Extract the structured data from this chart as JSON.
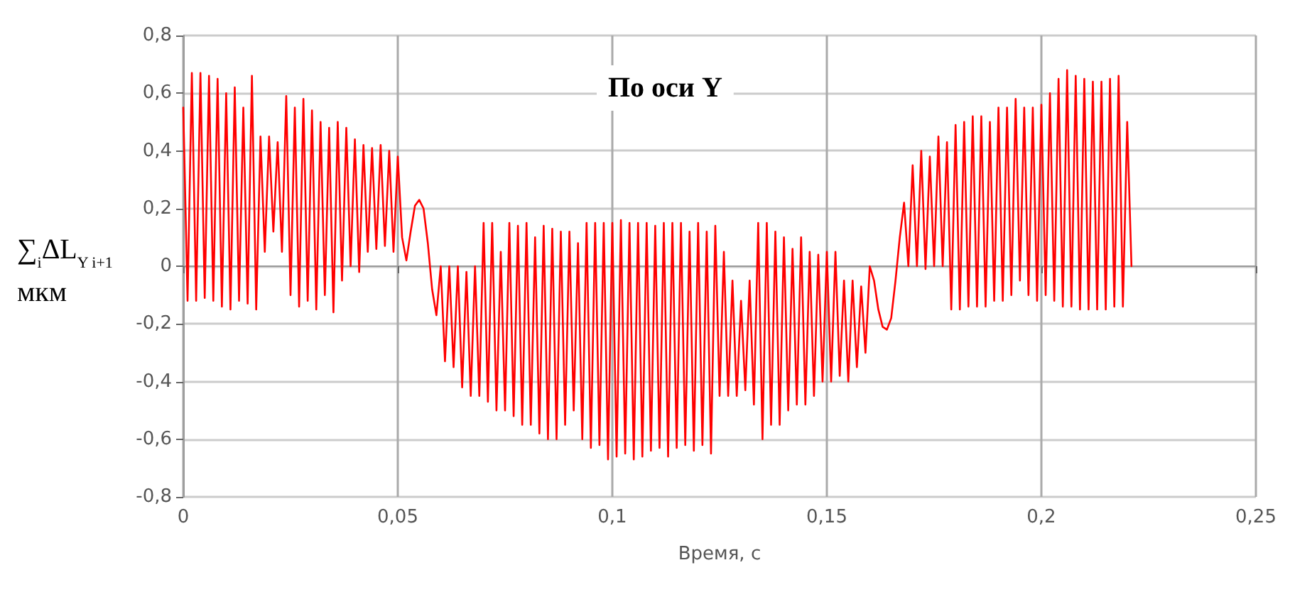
{
  "chart_data": {
    "type": "line",
    "title": "По оси Y",
    "xlabel": "Время, с",
    "ylabel": "∑$_{i}$ΔL$_{Y i+1}$\nмкм",
    "series": [
      {
        "color": "#ff0000",
        "x": [
          0,
          0.001,
          0.002,
          0.003,
          0.004,
          0.005,
          0.006,
          0.007,
          0.008,
          0.009,
          0.01,
          0.011,
          0.012,
          0.013,
          0.014,
          0.015,
          0.016,
          0.017,
          0.018,
          0.019,
          0.02,
          0.021,
          0.022,
          0.023,
          0.024,
          0.025,
          0.026,
          0.027,
          0.028,
          0.029,
          0.03,
          0.031,
          0.032,
          0.033,
          0.034,
          0.035,
          0.036,
          0.037,
          0.038,
          0.039,
          0.04,
          0.041,
          0.042,
          0.043,
          0.044,
          0.045,
          0.046,
          0.047,
          0.048,
          0.049,
          0.05,
          0.051,
          0.052,
          0.053,
          0.054,
          0.055,
          0.056,
          0.057,
          0.058,
          0.059,
          0.06,
          0.061,
          0.062,
          0.063,
          0.064,
          0.065,
          0.066,
          0.067,
          0.068,
          0.069,
          0.07,
          0.071,
          0.072,
          0.073,
          0.074,
          0.075,
          0.076,
          0.077,
          0.078,
          0.079,
          0.08,
          0.081,
          0.082,
          0.083,
          0.084,
          0.085,
          0.086,
          0.087,
          0.088,
          0.089,
          0.09,
          0.091,
          0.092,
          0.093,
          0.094,
          0.095,
          0.096,
          0.097,
          0.098,
          0.099,
          0.1,
          0.101,
          0.102,
          0.103,
          0.104,
          0.105,
          0.106,
          0.107,
          0.108,
          0.109,
          0.11,
          0.111,
          0.112,
          0.113,
          0.114,
          0.115,
          0.116,
          0.117,
          0.118,
          0.119,
          0.12,
          0.121,
          0.122,
          0.123,
          0.124,
          0.125,
          0.126,
          0.127,
          0.128,
          0.129,
          0.13,
          0.131,
          0.132,
          0.133,
          0.134,
          0.135,
          0.136,
          0.137,
          0.138,
          0.139,
          0.14,
          0.141,
          0.142,
          0.143,
          0.144,
          0.145,
          0.146,
          0.147,
          0.148,
          0.149,
          0.15,
          0.151,
          0.152,
          0.153,
          0.154,
          0.155,
          0.156,
          0.157,
          0.158,
          0.159,
          0.16,
          0.161,
          0.162,
          0.163,
          0.164,
          0.165,
          0.166,
          0.167,
          0.168,
          0.169,
          0.17,
          0.171,
          0.172,
          0.173,
          0.174,
          0.175,
          0.176,
          0.177,
          0.178,
          0.179,
          0.18,
          0.181,
          0.182,
          0.183,
          0.184,
          0.185,
          0.186,
          0.187,
          0.188,
          0.189,
          0.19,
          0.191,
          0.192,
          0.193,
          0.194,
          0.195,
          0.196,
          0.197,
          0.198,
          0.199,
          0.2,
          0.201,
          0.202,
          0.203,
          0.204,
          0.205,
          0.206,
          0.207,
          0.208,
          0.209,
          0.21,
          0.211,
          0.212,
          0.213,
          0.214,
          0.215,
          0.216,
          0.217,
          0.218,
          0.219,
          0.22,
          0.221
        ],
        "values": [
          0.55,
          -0.12,
          0.67,
          -0.12,
          0.67,
          -0.11,
          0.66,
          -0.12,
          0.65,
          -0.14,
          0.6,
          -0.15,
          0.62,
          -0.12,
          0.55,
          -0.13,
          0.66,
          -0.15,
          0.45,
          0.05,
          0.45,
          0.12,
          0.43,
          0.05,
          0.59,
          -0.1,
          0.55,
          -0.14,
          0.58,
          -0.12,
          0.54,
          -0.15,
          0.5,
          -0.1,
          0.48,
          -0.16,
          0.5,
          -0.05,
          0.48,
          0,
          0.44,
          -0.02,
          0.42,
          0.05,
          0.41,
          0.06,
          0.42,
          0.07,
          0.4,
          0.05,
          0.38,
          0.1,
          0.02,
          0.12,
          0.21,
          0.23,
          0.2,
          0.08,
          -0.08,
          -0.17,
          0,
          -0.33,
          0,
          -0.35,
          0,
          -0.42,
          -0.02,
          -0.45,
          0,
          -0.45,
          0.15,
          -0.47,
          0.15,
          -0.5,
          0.05,
          -0.5,
          0.15,
          -0.52,
          0.14,
          -0.55,
          0.15,
          -0.55,
          0.1,
          -0.58,
          0.14,
          -0.6,
          0.13,
          -0.6,
          0.12,
          -0.55,
          0.12,
          -0.5,
          0.08,
          -0.6,
          0.15,
          -0.63,
          0.15,
          -0.62,
          0.15,
          -0.67,
          0.15,
          -0.66,
          0.16,
          -0.65,
          0.15,
          -0.67,
          0.15,
          -0.66,
          0.15,
          -0.64,
          0.14,
          -0.63,
          0.15,
          -0.66,
          0.15,
          -0.63,
          0.15,
          -0.62,
          0.12,
          -0.64,
          0.15,
          -0.62,
          0.12,
          -0.65,
          0.14,
          -0.45,
          0.05,
          -0.45,
          -0.05,
          -0.45,
          -0.12,
          -0.43,
          -0.05,
          -0.48,
          0.15,
          -0.6,
          0.15,
          -0.55,
          0.12,
          -0.55,
          0.1,
          -0.5,
          0.06,
          -0.48,
          0.1,
          -0.48,
          0.05,
          -0.45,
          0.04,
          -0.4,
          0.05,
          -0.4,
          0.05,
          -0.38,
          -0.05,
          -0.4,
          -0.05,
          -0.35,
          -0.07,
          -0.3,
          0,
          -0.05,
          -0.15,
          -0.21,
          -0.22,
          -0.18,
          -0.05,
          0.1,
          0.22,
          0,
          0.35,
          0,
          0.4,
          -0.01,
          0.38,
          0,
          0.45,
          0,
          0.43,
          -0.15,
          0.49,
          -0.15,
          0.5,
          -0.14,
          0.52,
          -0.14,
          0.52,
          -0.14,
          0.5,
          -0.12,
          0.55,
          -0.12,
          0.55,
          -0.1,
          0.58,
          -0.05,
          0.55,
          -0.1,
          0.55,
          -0.12,
          0.56,
          -0.1,
          0.6,
          -0.12,
          0.65,
          -0.14,
          0.68,
          -0.14,
          0.66,
          -0.15,
          0.65,
          -0.15,
          0.64,
          -0.15,
          0.64,
          -0.15,
          0.65,
          -0.14,
          0.66,
          -0.14,
          0.5,
          0
        ]
      }
    ],
    "xlim": [
      0,
      0.25
    ],
    "xticks": [
      0,
      {
        "value": 0.05,
        "label": "0,05"
      },
      {
        "value": 0.1,
        "label": "0,1"
      },
      {
        "value": 0.15,
        "label": "0,15"
      },
      {
        "value": 0.2,
        "label": "0,2"
      },
      {
        "value": 0.25,
        "label": "0,25"
      }
    ],
    "ylim": [
      -0.8,
      0.8
    ],
    "yticks": [
      {
        "value": -0.8,
        "label": "-0,8"
      },
      {
        "value": -0.6,
        "label": "-0,6"
      },
      {
        "value": -0.4,
        "label": "-0,4"
      },
      {
        "value": -0.2,
        "label": "-0,2"
      },
      0,
      {
        "value": 0.2,
        "label": "0,2"
      },
      {
        "value": 0.4,
        "label": "0,4"
      },
      {
        "value": 0.6,
        "label": "0,6"
      },
      {
        "value": 0.8,
        "label": "0,8"
      }
    ],
    "grid": true,
    "marker": "none",
    "line_style": "solid"
  }
}
